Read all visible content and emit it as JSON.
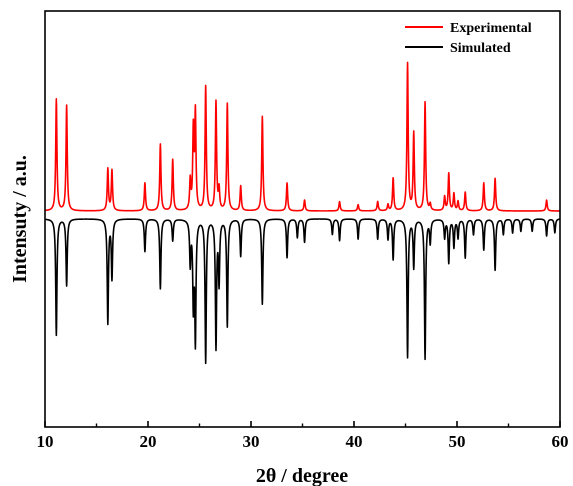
{
  "chart_data": {
    "type": "line",
    "title": "",
    "xlabel": "2θ / degree",
    "ylabel": "Intensuty / a.u.",
    "xlim": [
      10,
      60
    ],
    "xticks": [
      10,
      20,
      30,
      40,
      50,
      60
    ],
    "tick_labels": [
      "10",
      "20",
      "30",
      "40",
      "50",
      "60"
    ],
    "y_ticks_shown": false,
    "grid": false,
    "legend_position": "top-right",
    "series": [
      {
        "name": "Experimental",
        "color": "#ff0000",
        "baseline": 0.0,
        "direction": "up",
        "peaks": [
          {
            "x": 11.1,
            "h": 0.72
          },
          {
            "x": 12.1,
            "h": 0.68
          },
          {
            "x": 16.1,
            "h": 0.27
          },
          {
            "x": 16.5,
            "h": 0.26
          },
          {
            "x": 19.7,
            "h": 0.18
          },
          {
            "x": 21.2,
            "h": 0.43
          },
          {
            "x": 22.4,
            "h": 0.33
          },
          {
            "x": 24.1,
            "h": 0.19
          },
          {
            "x": 24.4,
            "h": 0.51
          },
          {
            "x": 24.6,
            "h": 0.62
          },
          {
            "x": 25.6,
            "h": 0.8
          },
          {
            "x": 26.6,
            "h": 0.7
          },
          {
            "x": 26.9,
            "h": 0.13
          },
          {
            "x": 27.7,
            "h": 0.69
          },
          {
            "x": 29.0,
            "h": 0.16
          },
          {
            "x": 31.1,
            "h": 0.61
          },
          {
            "x": 33.5,
            "h": 0.18
          },
          {
            "x": 35.2,
            "h": 0.07
          },
          {
            "x": 38.6,
            "h": 0.06
          },
          {
            "x": 40.4,
            "h": 0.04
          },
          {
            "x": 42.3,
            "h": 0.06
          },
          {
            "x": 43.3,
            "h": 0.04
          },
          {
            "x": 43.8,
            "h": 0.21
          },
          {
            "x": 45.2,
            "h": 0.95
          },
          {
            "x": 45.8,
            "h": 0.5
          },
          {
            "x": 46.9,
            "h": 0.7
          },
          {
            "x": 47.4,
            "h": 0.04
          },
          {
            "x": 48.8,
            "h": 0.09
          },
          {
            "x": 49.2,
            "h": 0.24
          },
          {
            "x": 49.7,
            "h": 0.11
          },
          {
            "x": 50.1,
            "h": 0.06
          },
          {
            "x": 50.8,
            "h": 0.12
          },
          {
            "x": 52.6,
            "h": 0.18
          },
          {
            "x": 53.7,
            "h": 0.21
          },
          {
            "x": 58.7,
            "h": 0.07
          }
        ]
      },
      {
        "name": "Simulated",
        "color": "#000000",
        "baseline": -0.05,
        "direction": "down",
        "peaks": [
          {
            "x": 11.1,
            "h": 0.75
          },
          {
            "x": 12.1,
            "h": 0.43
          },
          {
            "x": 16.1,
            "h": 0.67
          },
          {
            "x": 16.5,
            "h": 0.38
          },
          {
            "x": 19.7,
            "h": 0.21
          },
          {
            "x": 21.2,
            "h": 0.45
          },
          {
            "x": 22.4,
            "h": 0.14
          },
          {
            "x": 24.1,
            "h": 0.28
          },
          {
            "x": 24.4,
            "h": 0.53
          },
          {
            "x": 24.6,
            "h": 0.77
          },
          {
            "x": 25.6,
            "h": 0.92
          },
          {
            "x": 26.6,
            "h": 0.82
          },
          {
            "x": 26.9,
            "h": 0.4
          },
          {
            "x": 27.7,
            "h": 0.69
          },
          {
            "x": 29.0,
            "h": 0.24
          },
          {
            "x": 31.1,
            "h": 0.55
          },
          {
            "x": 33.5,
            "h": 0.25
          },
          {
            "x": 34.5,
            "h": 0.12
          },
          {
            "x": 35.2,
            "h": 0.15
          },
          {
            "x": 37.9,
            "h": 0.1
          },
          {
            "x": 38.6,
            "h": 0.14
          },
          {
            "x": 40.4,
            "h": 0.13
          },
          {
            "x": 42.3,
            "h": 0.13
          },
          {
            "x": 43.3,
            "h": 0.13
          },
          {
            "x": 43.8,
            "h": 0.26
          },
          {
            "x": 45.2,
            "h": 0.89
          },
          {
            "x": 45.8,
            "h": 0.31
          },
          {
            "x": 46.9,
            "h": 0.9
          },
          {
            "x": 47.4,
            "h": 0.15
          },
          {
            "x": 48.8,
            "h": 0.12
          },
          {
            "x": 49.2,
            "h": 0.28
          },
          {
            "x": 49.7,
            "h": 0.18
          },
          {
            "x": 50.1,
            "h": 0.12
          },
          {
            "x": 50.8,
            "h": 0.25
          },
          {
            "x": 51.6,
            "h": 0.1
          },
          {
            "x": 52.6,
            "h": 0.2
          },
          {
            "x": 53.7,
            "h": 0.33
          },
          {
            "x": 54.5,
            "h": 0.1
          },
          {
            "x": 55.4,
            "h": 0.09
          },
          {
            "x": 56.2,
            "h": 0.08
          },
          {
            "x": 57.3,
            "h": 0.08
          },
          {
            "x": 58.7,
            "h": 0.11
          },
          {
            "x": 59.5,
            "h": 0.09
          }
        ]
      }
    ]
  }
}
